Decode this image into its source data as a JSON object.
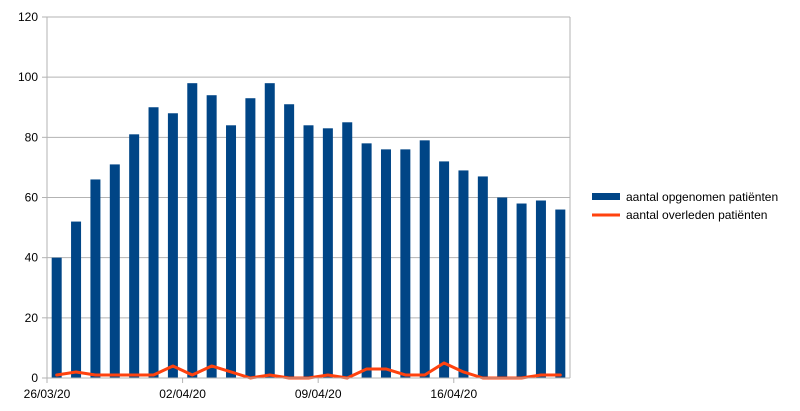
{
  "chart_data": {
    "type": "bar",
    "categories": [
      "26/03/20",
      "27/03/20",
      "28/03/20",
      "29/03/20",
      "30/03/20",
      "31/03/20",
      "01/04/20",
      "02/04/20",
      "03/04/20",
      "04/04/20",
      "05/04/20",
      "06/04/20",
      "07/04/20",
      "08/04/20",
      "09/04/20",
      "10/04/20",
      "11/04/20",
      "12/04/20",
      "13/04/20",
      "14/04/20",
      "15/04/20",
      "16/04/20",
      "17/04/20",
      "18/04/20",
      "19/04/20",
      "20/04/20",
      "21/04/20"
    ],
    "x_tick_labels": [
      {
        "index": 0,
        "label": "26/03/20"
      },
      {
        "index": 7,
        "label": "02/04/20"
      },
      {
        "index": 14,
        "label": "09/04/20"
      },
      {
        "index": 21,
        "label": "16/04/20"
      }
    ],
    "series": [
      {
        "name": "aantal opgenomen patiënten",
        "type": "bar",
        "color": "#004586",
        "values": [
          40,
          52,
          66,
          71,
          81,
          90,
          88,
          98,
          94,
          84,
          93,
          98,
          91,
          84,
          83,
          85,
          78,
          76,
          76,
          79,
          72,
          69,
          67,
          60,
          58,
          59,
          56
        ]
      },
      {
        "name": "aantal overleden patiënten",
        "type": "line",
        "color": "#ff420e",
        "values": [
          1,
          2,
          1,
          1,
          1,
          1,
          4,
          1,
          4,
          2,
          0,
          1,
          0,
          0,
          1,
          0,
          3,
          3,
          1,
          1,
          5,
          2,
          0,
          0,
          0,
          1,
          1
        ]
      }
    ],
    "ylim": [
      0,
      120
    ],
    "yticks": [
      0,
      20,
      40,
      60,
      80,
      100,
      120
    ],
    "grid": "horizontal",
    "legend_position": "right"
  }
}
